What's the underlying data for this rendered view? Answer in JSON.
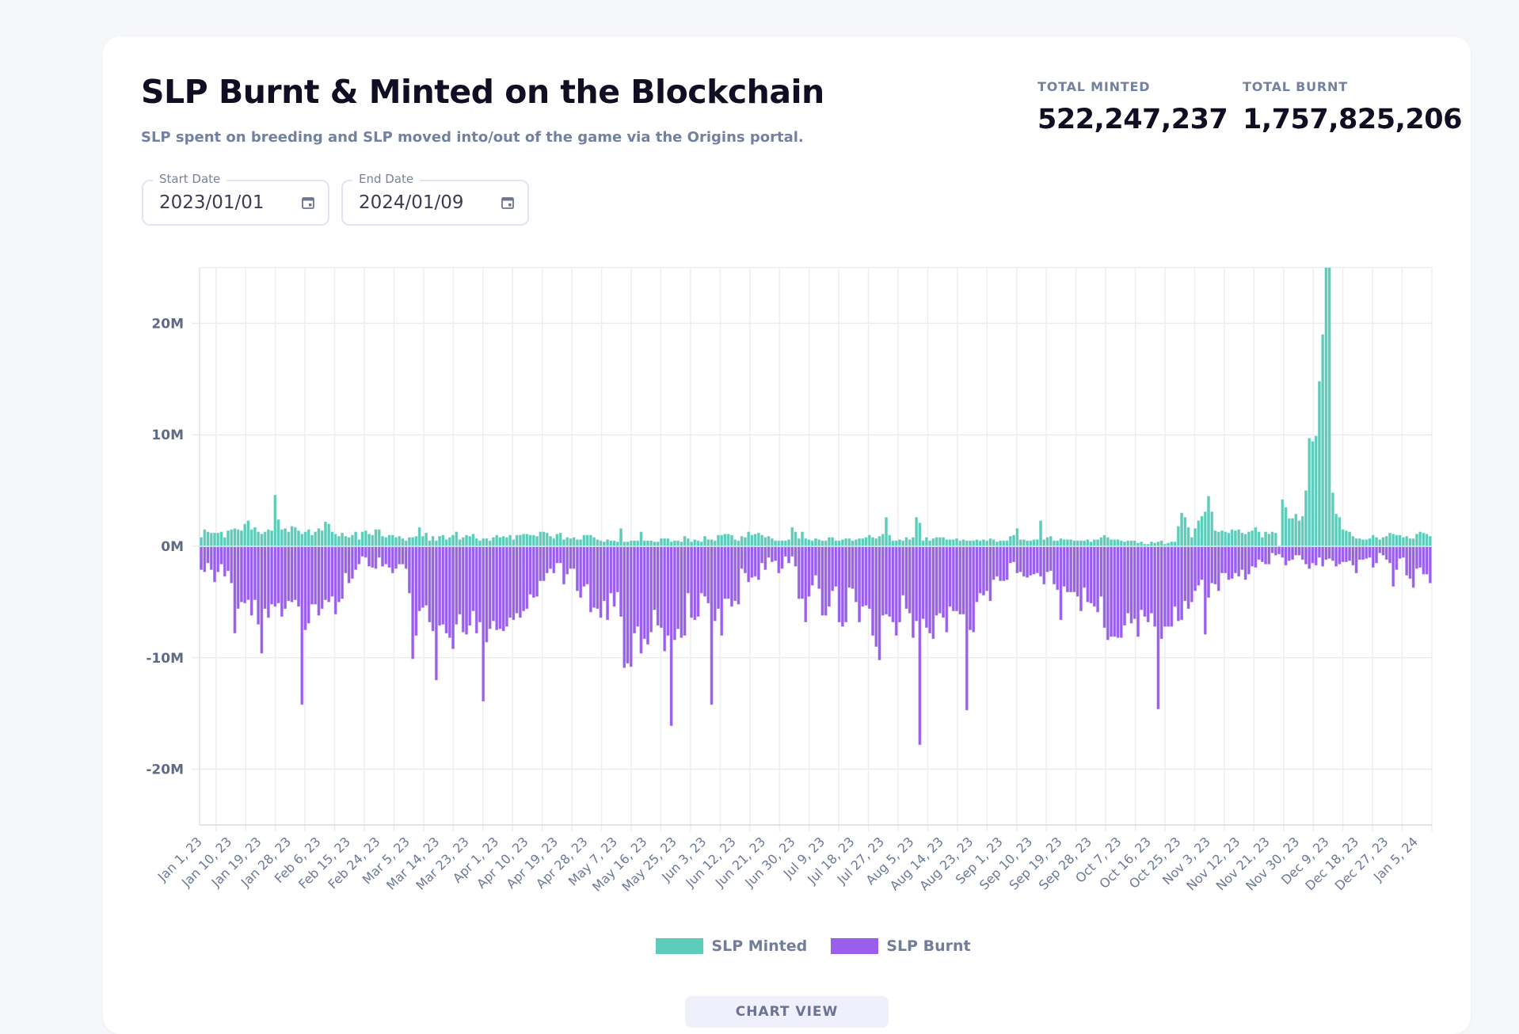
{
  "header": {
    "title": "SLP Burnt & Minted on the Blockchain",
    "subtitle": "SLP spent on breeding and SLP moved into/out of the game via the Origins portal."
  },
  "stats": {
    "total_minted_label": "TOTAL MINTED",
    "total_minted_value": "522,247,237",
    "total_burnt_label": "TOTAL BURNT",
    "total_burnt_value": "1,757,825,206"
  },
  "filters": {
    "start_date_label": "Start Date",
    "start_date_value": "2023/01/01",
    "end_date_label": "End Date",
    "end_date_value": "2024/01/09",
    "icon": "calendar-icon"
  },
  "view_button": "CHART VIEW",
  "colors": {
    "minted": "#5ccbb9",
    "burnt": "#9a5eec"
  },
  "chart_data": {
    "type": "bar",
    "stacked_diverging": true,
    "x_start": "2023-01-01",
    "x_end": "2024-01-09",
    "x_tick_labels": [
      "Jan 1, 23",
      "Jan 10, 23",
      "Jan 19, 23",
      "Jan 28, 23",
      "Feb 6, 23",
      "Feb 15, 23",
      "Feb 24, 23",
      "Mar 5, 23",
      "Mar 14, 23",
      "Mar 23, 23",
      "Apr 1, 23",
      "Apr 10, 23",
      "Apr 19, 23",
      "Apr 28, 23",
      "May 7, 23",
      "May 16, 23",
      "May 25, 23",
      "Jun 3, 23",
      "Jun 12, 23",
      "Jun 21, 23",
      "Jun 30, 23",
      "Jul 9, 23",
      "Jul 18, 23",
      "Jul 27, 23",
      "Aug 5, 23",
      "Aug 14, 23",
      "Aug 23, 23",
      "Sep 1, 23",
      "Sep 10, 23",
      "Sep 19, 23",
      "Sep 28, 23",
      "Oct 7, 23",
      "Oct 16, 23",
      "Oct 25, 23",
      "Nov 3, 23",
      "Nov 12, 23",
      "Nov 21, 23",
      "Nov 30, 23",
      "Dec 9, 23",
      "Dec 18, 23",
      "Dec 27, 23",
      "Jan 5, 24"
    ],
    "y_ticks": [
      20,
      10,
      0,
      -10,
      -20
    ],
    "y_tick_labels": [
      "20M",
      "10M",
      "0M",
      "-10M",
      "-20M"
    ],
    "ylim": [
      -25,
      25
    ],
    "y_unit": "millions",
    "grid": true,
    "legend_position": "bottom",
    "series": [
      {
        "name": "SLP Minted",
        "values": [
          0.8,
          1.5,
          1.3,
          1.2,
          1.2,
          1.2,
          1.3,
          0.8,
          1.4,
          1.5,
          1.6,
          1.5,
          1.4,
          2.0,
          2.3,
          1.5,
          1.7,
          1.3,
          1.1,
          1.3,
          1.5,
          1.4,
          4.6,
          2.4,
          1.5,
          1.6,
          1.3,
          1.8,
          1.7,
          1.4,
          1.1,
          1.3,
          1.5,
          1.0,
          1.3,
          1.6,
          1.4,
          2.2,
          2.0,
          1.3,
          1.1,
          0.9,
          1.2,
          0.9,
          0.8,
          1.0,
          1.3,
          0.6,
          1.3,
          1.4,
          1.1,
          1.0,
          1.5,
          1.5,
          0.9,
          0.8,
          1.0,
          1.0,
          0.8,
          0.9,
          0.7,
          0.5,
          0.8,
          0.8,
          0.9,
          1.7,
          0.9,
          1.2,
          0.5,
          0.9,
          0.5,
          0.9,
          1.0,
          0.6,
          0.8,
          1.0,
          1.3,
          0.6,
          0.8,
          1.0,
          0.9,
          1.1,
          0.7,
          0.5,
          0.7,
          0.7,
          0.5,
          0.8,
          1.0,
          0.8,
          0.9,
          0.8,
          1.0,
          0.6,
          1.0,
          1.0,
          1.1,
          1.1,
          1.0,
          1.0,
          0.9,
          1.3,
          1.3,
          1.2,
          0.9,
          0.7,
          1.1,
          1.2,
          0.6,
          0.8,
          0.7,
          0.8,
          0.6,
          0.6,
          1.0,
          1.0,
          1.0,
          0.8,
          0.6,
          0.5,
          0.4,
          0.6,
          0.5,
          0.5,
          0.4,
          1.6,
          0.4,
          0.4,
          0.5,
          0.5,
          0.5,
          1.3,
          0.5,
          0.5,
          0.5,
          0.4,
          0.4,
          0.7,
          0.7,
          0.7,
          0.4,
          0.5,
          0.5,
          0.4,
          0.9,
          0.7,
          0.4,
          0.6,
          0.5,
          0.4,
          0.9,
          0.6,
          0.6,
          0.5,
          1.0,
          1.0,
          1.1,
          1.1,
          1.0,
          0.6,
          0.5,
          0.9,
          0.8,
          1.3,
          1.0,
          1.1,
          1.2,
          1.0,
          0.8,
          0.9,
          0.7,
          0.5,
          0.5,
          0.5,
          0.5,
          0.6,
          1.7,
          1.3,
          0.7,
          1.3,
          0.7,
          0.6,
          0.5,
          0.7,
          0.6,
          0.5,
          0.5,
          0.8,
          0.8,
          0.5,
          0.5,
          0.6,
          0.7,
          0.7,
          0.5,
          0.6,
          0.7,
          0.7,
          0.8,
          1.0,
          0.8,
          0.7,
          0.9,
          1.1,
          2.6,
          1.0,
          0.5,
          0.5,
          0.6,
          0.5,
          0.8,
          0.6,
          0.8,
          2.6,
          2.1,
          0.5,
          0.8,
          0.5,
          0.7,
          0.8,
          0.8,
          0.8,
          0.6,
          0.6,
          0.6,
          0.7,
          0.5,
          0.6,
          0.5,
          0.5,
          0.5,
          0.6,
          0.5,
          0.6,
          0.5,
          0.7,
          0.6,
          0.4,
          0.5,
          0.5,
          0.5,
          0.9,
          1.0,
          1.6,
          0.6,
          0.6,
          0.5,
          0.5,
          0.6,
          0.6,
          2.3,
          0.6,
          0.8,
          0.9,
          0.5,
          0.5,
          0.7,
          0.6,
          0.6,
          0.6,
          0.5,
          0.5,
          0.5,
          0.5,
          0.6,
          0.4,
          0.6,
          0.6,
          0.8,
          1.0,
          0.8,
          0.6,
          0.6,
          0.6,
          0.5,
          0.4,
          0.5,
          0.5,
          0.5,
          0.3,
          0.4,
          0.2,
          0.2,
          0.4,
          0.3,
          0.4,
          0.5,
          0.2,
          0.3,
          0.4,
          0.4,
          1.8,
          3.0,
          2.6,
          1.7,
          0.8,
          1.6,
          2.3,
          2.7,
          3.1,
          4.5,
          3.1,
          1.4,
          1.3,
          1.4,
          1.3,
          1.2,
          1.5,
          1.4,
          1.5,
          1.2,
          1.1,
          1.3,
          1.4,
          1.7,
          1.3,
          0.8,
          1.3,
          1.1,
          1.3,
          1.2,
          0,
          4.2,
          3.5,
          2.5,
          2.5,
          2.9,
          2.3,
          2.7,
          5.0,
          9.7,
          9.4,
          9.9,
          14.8,
          19.0,
          28,
          30,
          4.8,
          2.9,
          2.6,
          1.5,
          1.4,
          1.3,
          0.9,
          0.7,
          0.7,
          0.6,
          0.6,
          0.7,
          1.0,
          0.8,
          0.6,
          0.8,
          0.9,
          1.2,
          1.1,
          1.0,
          1.0,
          0.8,
          0.9,
          0.7,
          0.7,
          1.1,
          1.3,
          1.2,
          1.1,
          0.9
        ]
      },
      {
        "name": "SLP Burnt",
        "values": [
          -2.1,
          -2.3,
          -1.5,
          -2.1,
          -3.2,
          -2.3,
          -1.6,
          -2.7,
          -2.2,
          -3.3,
          -7.8,
          -5.6,
          -5.0,
          -5.1,
          -4.8,
          -6.2,
          -4.8,
          -7.0,
          -9.6,
          -5.6,
          -6.4,
          -5.2,
          -5.4,
          -5.1,
          -6.3,
          -5.6,
          -4.9,
          -5.0,
          -4.8,
          -5.4,
          -14.2,
          -7.5,
          -6.9,
          -5.2,
          -5.2,
          -6.2,
          -5.6,
          -4.8,
          -5.0,
          -4.5,
          -6.1,
          -5.0,
          -4.7,
          -2.4,
          -3.3,
          -2.9,
          -2.1,
          -1.6,
          -0.9,
          -1.0,
          -1.8,
          -1.9,
          -2.0,
          -1.0,
          -1.8,
          -1.6,
          -1.9,
          -2.4,
          -2.0,
          -1.6,
          -1.6,
          -2.0,
          -4.2,
          -10.1,
          -8.0,
          -5.8,
          -5.5,
          -5.3,
          -6.8,
          -7.6,
          -12.0,
          -7.1,
          -7.0,
          -7.8,
          -8.2,
          -9.2,
          -7.0,
          -6.1,
          -7.7,
          -7.9,
          -7.1,
          -5.8,
          -7.8,
          -6.8,
          -13.9,
          -8.6,
          -7.4,
          -6.7,
          -7.5,
          -7.4,
          -7.6,
          -7.2,
          -6.4,
          -6.6,
          -6.0,
          -6.4,
          -5.8,
          -5.6,
          -4.3,
          -4.6,
          -4.5,
          -3.1,
          -3.1,
          -2.4,
          -2.0,
          -2.4,
          -1.5,
          -1.5,
          -3.4,
          -2.5,
          -2.0,
          -2.0,
          -4.0,
          -4.6,
          -3.6,
          -3.4,
          -5.9,
          -5.5,
          -5.6,
          -6.4,
          -4.9,
          -6.6,
          -4.2,
          -5.4,
          -4.1,
          -6.3,
          -10.9,
          -10.5,
          -10.8,
          -7.8,
          -7.2,
          -9.6,
          -8.3,
          -8.8,
          -7.7,
          -5.7,
          -7.1,
          -7.3,
          -9.4,
          -8.0,
          -16.1,
          -8.4,
          -7.4,
          -8.2,
          -8.0,
          -4.2,
          -6.4,
          -6.6,
          -6.3,
          -4.2,
          -4.5,
          -5.1,
          -14.2,
          -6.7,
          -5.6,
          -8.0,
          -4.7,
          -4.7,
          -5.4,
          -4.9,
          -5.2,
          -2.0,
          -2.4,
          -3.2,
          -2.8,
          -2.7,
          -3.0,
          -1.5,
          -2.1,
          -1.0,
          -1.4,
          -1.3,
          -2.4,
          -2.0,
          -0.9,
          -1.5,
          -0.9,
          -1.8,
          -4.7,
          -4.7,
          -6.8,
          -4.5,
          -3.5,
          -2.6,
          -3.8,
          -6.2,
          -6.2,
          -5.4,
          -4.0,
          -3.6,
          -6.8,
          -7.2,
          -6.8,
          -3.7,
          -3.8,
          -5.0,
          -6.8,
          -5.4,
          -5.3,
          -5.6,
          -8.0,
          -9.0,
          -10.2,
          -6.2,
          -6.1,
          -6.3,
          -6.8,
          -8.0,
          -6.8,
          -4.4,
          -5.6,
          -6.0,
          -8.2,
          -6.7,
          -17.8,
          -6.5,
          -7.3,
          -7.8,
          -8.3,
          -6.2,
          -6.0,
          -6.4,
          -7.7,
          -5.4,
          -5.8,
          -5.8,
          -6.1,
          -6.1,
          -14.7,
          -7.5,
          -7.7,
          -5.0,
          -4.2,
          -4.4,
          -4.0,
          -4.9,
          -3.0,
          -2.7,
          -3.1,
          -3.1,
          -3.0,
          -1.5,
          -1.4,
          -2.4,
          -2.3,
          -2.7,
          -2.8,
          -2.6,
          -2.5,
          -2.4,
          -2.7,
          -3.4,
          -2.3,
          -2.2,
          -3.4,
          -3.9,
          -6.6,
          -3.6,
          -4.1,
          -4.1,
          -4.1,
          -4.5,
          -5.8,
          -3.7,
          -5.0,
          -5.1,
          -5.4,
          -5.9,
          -4.5,
          -7.3,
          -8.4,
          -8.1,
          -8.1,
          -8.2,
          -8.2,
          -7.1,
          -6.0,
          -6.9,
          -6.5,
          -8.1,
          -5.7,
          -6.3,
          -6.8,
          -6.0,
          -7.2,
          -14.6,
          -8.3,
          -7.2,
          -7.2,
          -7.2,
          -5.4,
          -6.7,
          -6.6,
          -4.9,
          -5.6,
          -5.0,
          -4.0,
          -3.5,
          -3.0,
          -7.9,
          -4.6,
          -3.3,
          -3.4,
          -4.0,
          -2.4,
          -2.4,
          -3.0,
          -2.9,
          -2.4,
          -2.7,
          -2.1,
          -3.0,
          -2.5,
          -1.8,
          -1.9,
          -1.2,
          -1.4,
          -1.6,
          -1.6,
          -0.6,
          -0.8,
          -0.7,
          -1.0,
          -1.7,
          -1.3,
          -1.2,
          -0.8,
          -0.8,
          -1.2,
          -1.6,
          -2.0,
          -1.5,
          -1.7,
          -1.0,
          -1.8,
          -1.2,
          -1.1,
          -1.3,
          -1.8,
          -1.6,
          -1.4,
          -1.4,
          -1.3,
          -1.7,
          -2.4,
          -1.2,
          -1.2,
          -1.1,
          -1.0,
          -1.9,
          -1.5,
          -0.6,
          -0.8,
          -1.2,
          -1.5,
          -3.6,
          -2.1,
          -1.1,
          -1.0,
          -2.6,
          -2.9,
          -3.7,
          -2.0,
          -1.9,
          -2.5,
          -2.5,
          -3.3
        ]
      }
    ]
  }
}
